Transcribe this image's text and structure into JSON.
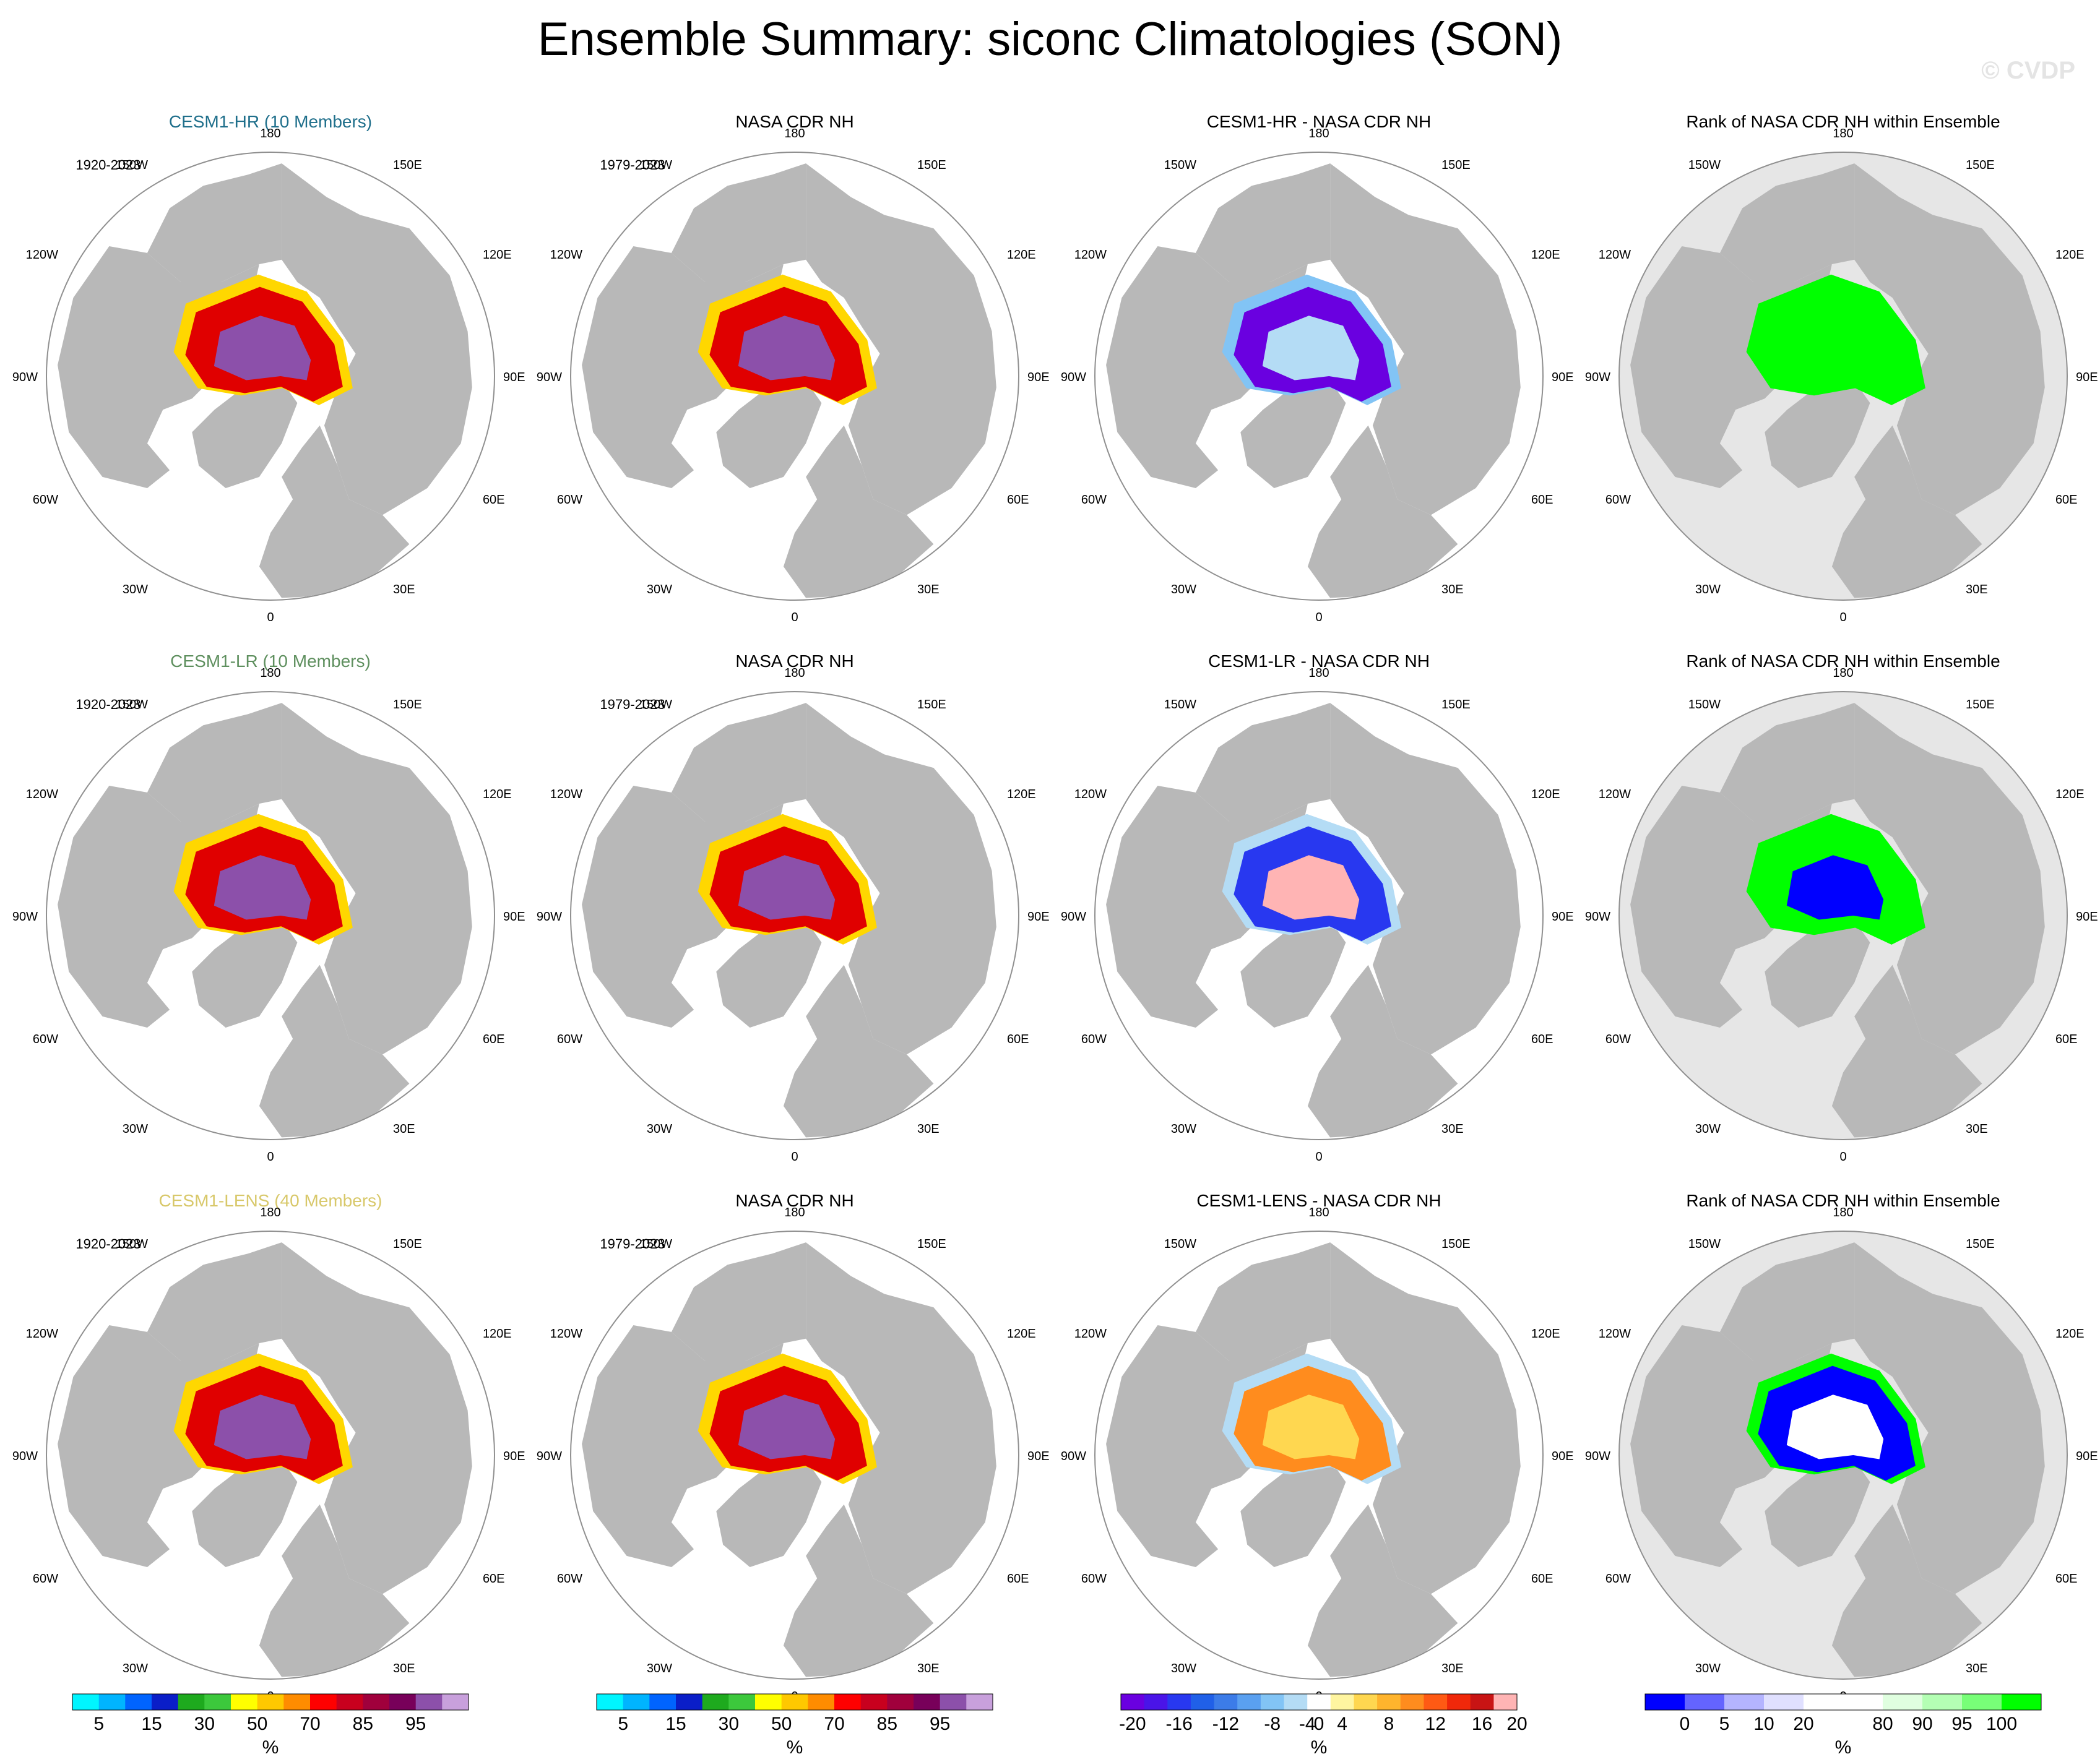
{
  "title": "Ensemble Summary: siconc Climatologies (SON)",
  "watermark": "© CVDP",
  "units": "%",
  "longitude_labels": [
    "180",
    "150E",
    "120E",
    "90E",
    "60E",
    "30E",
    "0",
    "30W",
    "60W",
    "90W",
    "120W",
    "150W"
  ],
  "rows": [
    {
      "model": "CESM1-HR (10 Members)",
      "model_color": "#1f6f8b",
      "model_period": "1920-2023",
      "obs_title": "NASA CDR NH",
      "obs_period": "1979-2023",
      "diff_title": "CESM1-HR - NASA CDR NH",
      "rank_title": "Rank of NASA CDR NH within Ensemble"
    },
    {
      "model": "CESM1-LR (10 Members)",
      "model_color": "#5e8f5e",
      "model_period": "1920-2023",
      "obs_title": "NASA CDR NH",
      "obs_period": "1979-2023",
      "diff_title": "CESM1-LR - NASA CDR NH",
      "rank_title": "Rank of NASA CDR NH within Ensemble"
    },
    {
      "model": "CESM1-LENS (40 Members)",
      "model_color": "#d8c86a",
      "model_period": "1920-2023",
      "obs_title": "NASA CDR NH",
      "obs_period": "1979-2023",
      "diff_title": "CESM1-LENS - NASA CDR NH",
      "rank_title": "Rank of NASA CDR NH within Ensemble"
    }
  ],
  "colorbars": [
    {
      "name": "concentration",
      "colors": [
        "#00f5ff",
        "#00b4ff",
        "#0064ff",
        "#0a1ec8",
        "#1eaa1e",
        "#3cc83c",
        "#ffff00",
        "#ffc800",
        "#ff8c00",
        "#ff0000",
        "#c8001e",
        "#a0003c",
        "#78005a",
        "#8c50aa",
        "#c8a0dc"
      ],
      "tick_labels": [
        "5",
        "15",
        "30",
        "50",
        "70",
        "85",
        "95"
      ],
      "tick_positions": [
        1,
        3,
        5,
        7,
        9,
        11,
        13
      ],
      "units": "%"
    },
    {
      "name": "concentration-obs",
      "colors": [
        "#00f5ff",
        "#00b4ff",
        "#0064ff",
        "#0a1ec8",
        "#1eaa1e",
        "#3cc83c",
        "#ffff00",
        "#ffc800",
        "#ff8c00",
        "#ff0000",
        "#c8001e",
        "#a0003c",
        "#78005a",
        "#8c50aa",
        "#c8a0dc"
      ],
      "tick_labels": [
        "5",
        "15",
        "30",
        "50",
        "70",
        "85",
        "95"
      ],
      "tick_positions": [
        1,
        3,
        5,
        7,
        9,
        11,
        13
      ],
      "units": "%"
    },
    {
      "name": "difference",
      "colors": [
        "#6a00e0",
        "#4a14e8",
        "#2838f0",
        "#2060e8",
        "#3c7ce8",
        "#5aa0f0",
        "#82c4f5",
        "#b4dcf5",
        "#ffffff",
        "#fff5a0",
        "#ffd750",
        "#ffb42d",
        "#ff8c1e",
        "#ff5a14",
        "#f0280a",
        "#c81414",
        "#ffb4b4"
      ],
      "tick_labels": [
        "-20",
        "-16",
        "-12",
        "-8",
        "-4",
        "0",
        "4",
        "8",
        "12",
        "16",
        "20"
      ],
      "tick_positions": [
        0.5,
        2.5,
        4.5,
        6.5,
        8.0,
        8.5,
        9.5,
        11.5,
        13.5,
        15.5,
        17.0
      ],
      "units": "%"
    },
    {
      "name": "rank",
      "colors": [
        "#0000ff",
        "#6464ff",
        "#b4b4ff",
        "#e0e0ff",
        "#ffffff",
        "#ffffff",
        "#e0ffe0",
        "#b4ffb4",
        "#78ff78",
        "#00ff00"
      ],
      "tick_labels": [
        "0",
        "5",
        "10",
        "20",
        "80",
        "90",
        "95",
        "100"
      ],
      "tick_positions": [
        1,
        2,
        3,
        4,
        6,
        7,
        8,
        9
      ],
      "units": "%"
    }
  ]
}
